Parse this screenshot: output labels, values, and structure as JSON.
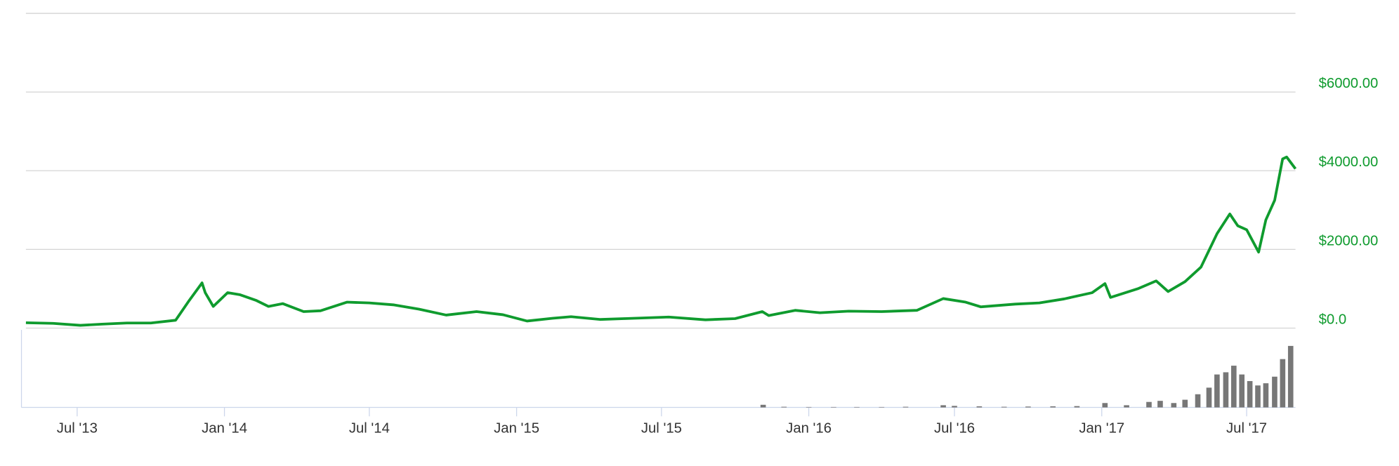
{
  "chart_data": {
    "type": "line",
    "xlim": [
      "2013-04-28",
      "2017-08-31"
    ],
    "xticks": [
      {
        "value": "2013-07-01",
        "label": "Jul '13"
      },
      {
        "value": "2014-01-01",
        "label": "Jan '14"
      },
      {
        "value": "2014-07-01",
        "label": "Jul '14"
      },
      {
        "value": "2015-01-01",
        "label": "Jan '15"
      },
      {
        "value": "2015-07-01",
        "label": "Jul '15"
      },
      {
        "value": "2016-01-01",
        "label": "Jan '16"
      },
      {
        "value": "2016-07-01",
        "label": "Jul '16"
      },
      {
        "value": "2017-01-01",
        "label": "Jan '17"
      },
      {
        "value": "2017-07-01",
        "label": "Jul '17"
      }
    ],
    "ylim": [
      0,
      8000
    ],
    "yticks": [
      {
        "value": 0,
        "label": "$0.0"
      },
      {
        "value": 2000,
        "label": "$2000.00"
      },
      {
        "value": 4000,
        "label": "$4000.00"
      },
      {
        "value": 6000,
        "label": "$6000.00"
      }
    ],
    "grid": true,
    "x": [
      "2013-04-28",
      "2013-06-01",
      "2013-07-05",
      "2013-08-01",
      "2013-09-01",
      "2013-10-01",
      "2013-11-01",
      "2013-11-18",
      "2013-12-04",
      "2013-12-08",
      "2013-12-18",
      "2014-01-05",
      "2014-01-20",
      "2014-02-10",
      "2014-02-25",
      "2014-03-15",
      "2014-04-10",
      "2014-05-01",
      "2014-06-03",
      "2014-07-01",
      "2014-08-01",
      "2014-09-01",
      "2014-10-05",
      "2014-11-12",
      "2014-12-15",
      "2015-01-14",
      "2015-02-15",
      "2015-03-10",
      "2015-04-15",
      "2015-05-15",
      "2015-07-10",
      "2015-08-25",
      "2015-10-01",
      "2015-11-04",
      "2015-11-12",
      "2015-12-15",
      "2016-01-15",
      "2016-02-20",
      "2016-04-01",
      "2016-05-15",
      "2016-06-17",
      "2016-07-15",
      "2016-08-03",
      "2016-09-15",
      "2016-10-15",
      "2016-11-15",
      "2016-12-20",
      "2017-01-05",
      "2017-01-12",
      "2017-02-15",
      "2017-03-10",
      "2017-03-25",
      "2017-04-15",
      "2017-05-05",
      "2017-05-25",
      "2017-06-10",
      "2017-06-20",
      "2017-07-01",
      "2017-07-16",
      "2017-07-25",
      "2017-08-05",
      "2017-08-15",
      "2017-08-20",
      "2017-08-31"
    ],
    "series": [
      {
        "color": "#0f9b2e",
        "values": [
          135,
          120,
          70,
          100,
          130,
          130,
          200,
          700,
          1150,
          900,
          550,
          900,
          850,
          700,
          550,
          620,
          420,
          440,
          660,
          640,
          590,
          480,
          330,
          420,
          340,
          180,
          250,
          290,
          220,
          240,
          280,
          210,
          240,
          420,
          320,
          450,
          390,
          430,
          420,
          450,
          750,
          660,
          540,
          610,
          640,
          740,
          900,
          1130,
          780,
          1000,
          1200,
          930,
          1180,
          1550,
          2400,
          2900,
          2600,
          2500,
          1930,
          2750,
          3250,
          4300,
          4350,
          4050
        ]
      }
    ],
    "volume_color": "#777777",
    "volume_x": [
      "2015-11-05",
      "2015-12-01",
      "2016-01-01",
      "2016-02-01",
      "2016-03-01",
      "2016-04-01",
      "2016-05-01",
      "2016-06-17",
      "2016-07-01",
      "2016-08-01",
      "2016-09-01",
      "2016-10-01",
      "2016-11-01",
      "2016-12-01",
      "2017-01-05",
      "2017-02-01",
      "2017-03-01",
      "2017-03-15",
      "2017-04-01",
      "2017-04-15",
      "2017-05-01",
      "2017-05-15",
      "2017-05-25",
      "2017-06-05",
      "2017-06-15",
      "2017-06-25",
      "2017-07-05",
      "2017-07-15",
      "2017-07-25",
      "2017-08-05",
      "2017-08-15",
      "2017-08-25"
    ],
    "volume_values": [
      0.12,
      0.03,
      0.02,
      0.02,
      0.02,
      0.02,
      0.03,
      0.1,
      0.07,
      0.05,
      0.03,
      0.04,
      0.05,
      0.06,
      0.2,
      0.1,
      0.25,
      0.3,
      0.2,
      0.35,
      0.6,
      0.9,
      1.5,
      1.6,
      1.9,
      1.5,
      1.2,
      1.0,
      1.1,
      1.4,
      2.2,
      2.8
    ]
  }
}
